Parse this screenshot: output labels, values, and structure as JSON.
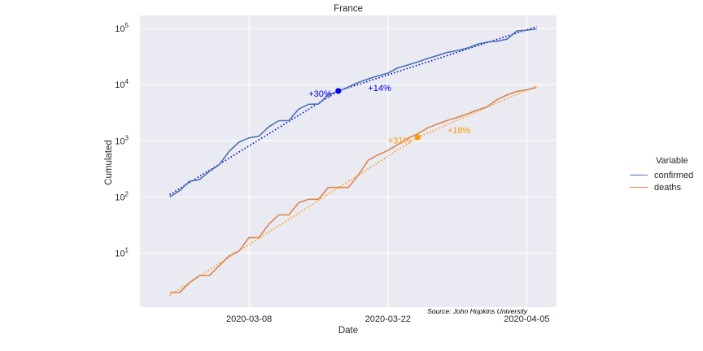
{
  "chart_data": {
    "type": "line",
    "title": "France",
    "xlabel": "Date",
    "ylabel": "Cumulated",
    "yscale": "log",
    "ylim": [
      1.1,
      170000
    ],
    "x": [
      "2020-02-29",
      "2020-03-01",
      "2020-03-02",
      "2020-03-03",
      "2020-03-04",
      "2020-03-05",
      "2020-03-06",
      "2020-03-07",
      "2020-03-08",
      "2020-03-09",
      "2020-03-10",
      "2020-03-11",
      "2020-03-12",
      "2020-03-13",
      "2020-03-14",
      "2020-03-15",
      "2020-03-16",
      "2020-03-17",
      "2020-03-18",
      "2020-03-19",
      "2020-03-20",
      "2020-03-21",
      "2020-03-22",
      "2020-03-23",
      "2020-03-24",
      "2020-03-25",
      "2020-03-26",
      "2020-03-27",
      "2020-03-28",
      "2020-03-29",
      "2020-03-30",
      "2020-03-31",
      "2020-04-01",
      "2020-04-02",
      "2020-04-03",
      "2020-04-04",
      "2020-04-05",
      "2020-04-06"
    ],
    "xlim": [
      "2020-02-26",
      "2020-04-08"
    ],
    "xticks": [
      "2020-03-08",
      "2020-03-22",
      "2020-04-05"
    ],
    "yticks": [
      {
        "base": "10",
        "exp": "1",
        "value": 10
      },
      {
        "base": "10",
        "exp": "2",
        "value": 100
      },
      {
        "base": "10",
        "exp": "3",
        "value": 1000
      },
      {
        "base": "10",
        "exp": "4",
        "value": 10000
      },
      {
        "base": "10",
        "exp": "5",
        "value": 100000
      }
    ],
    "series": [
      {
        "name": "confirmed",
        "color": "#4c72b0",
        "values": [
          100,
          130,
          191,
          204,
          285,
          377,
          653,
          949,
          1126,
          1209,
          1784,
          2281,
          2281,
          3661,
          4469,
          4499,
          6633,
          7652,
          9043,
          10871,
          12612,
          14282,
          16018,
          19856,
          22304,
          25233,
          29155,
          32964,
          37575,
          40174,
          44550,
          52128,
          56989,
          59105,
          64338,
          89953,
          92839,
          98010
        ]
      },
      {
        "name": "deaths",
        "color": "#dd8452",
        "values": [
          2,
          2,
          3,
          4,
          4,
          6,
          9,
          11,
          19,
          19,
          33,
          48,
          48,
          79,
          91,
          91,
          148,
          148,
          148,
          243,
          450,
          562,
          674,
          860,
          1100,
          1331,
          1696,
          1995,
          2314,
          2606,
          3024,
          3523,
          4032,
          5387,
          6507,
          7560,
          8078,
          8911
        ]
      }
    ],
    "trends": [
      {
        "series": "confirmed",
        "color": "#0000cc",
        "from": "2020-02-29",
        "to": "2020-03-17",
        "y_from": 110,
        "y_to": 7700
      },
      {
        "series": "confirmed",
        "color": "#0000cc",
        "from": "2020-03-17",
        "to": "2020-04-06",
        "y_from": 7700,
        "y_to": 108000
      },
      {
        "series": "deaths",
        "color": "#ff9900",
        "from": "2020-02-29",
        "to": "2020-03-25",
        "y_from": 1.8,
        "y_to": 1150
      },
      {
        "series": "deaths",
        "color": "#ff9900",
        "from": "2020-03-25",
        "to": "2020-04-06",
        "y_from": 1150,
        "y_to": 9500
      }
    ],
    "markers": [
      {
        "series": "confirmed",
        "x": "2020-03-17",
        "y": 7700,
        "color": "#0000ee"
      },
      {
        "series": "deaths",
        "x": "2020-03-25",
        "y": 1150,
        "color": "#ff9900"
      }
    ],
    "annotations": [
      {
        "text": "+30%",
        "x": "2020-03-14",
        "y": 7000,
        "color": "#0000ee"
      },
      {
        "text": "+14%",
        "x": "2020-03-20",
        "y": 8800,
        "color": "#0000ee"
      },
      {
        "text": "+31%",
        "x": "2020-03-22",
        "y": 1020,
        "color": "#ff9900"
      },
      {
        "text": "+18%",
        "x": "2020-03-28",
        "y": 1550,
        "color": "#ff9900"
      }
    ],
    "source_note": "Source: John Hopkins University",
    "legend": {
      "title": "Variable",
      "position": "right"
    },
    "grid": true,
    "colors": {
      "background": "#eaeaf2",
      "grid": "#ffffff",
      "text": "#262626"
    }
  }
}
